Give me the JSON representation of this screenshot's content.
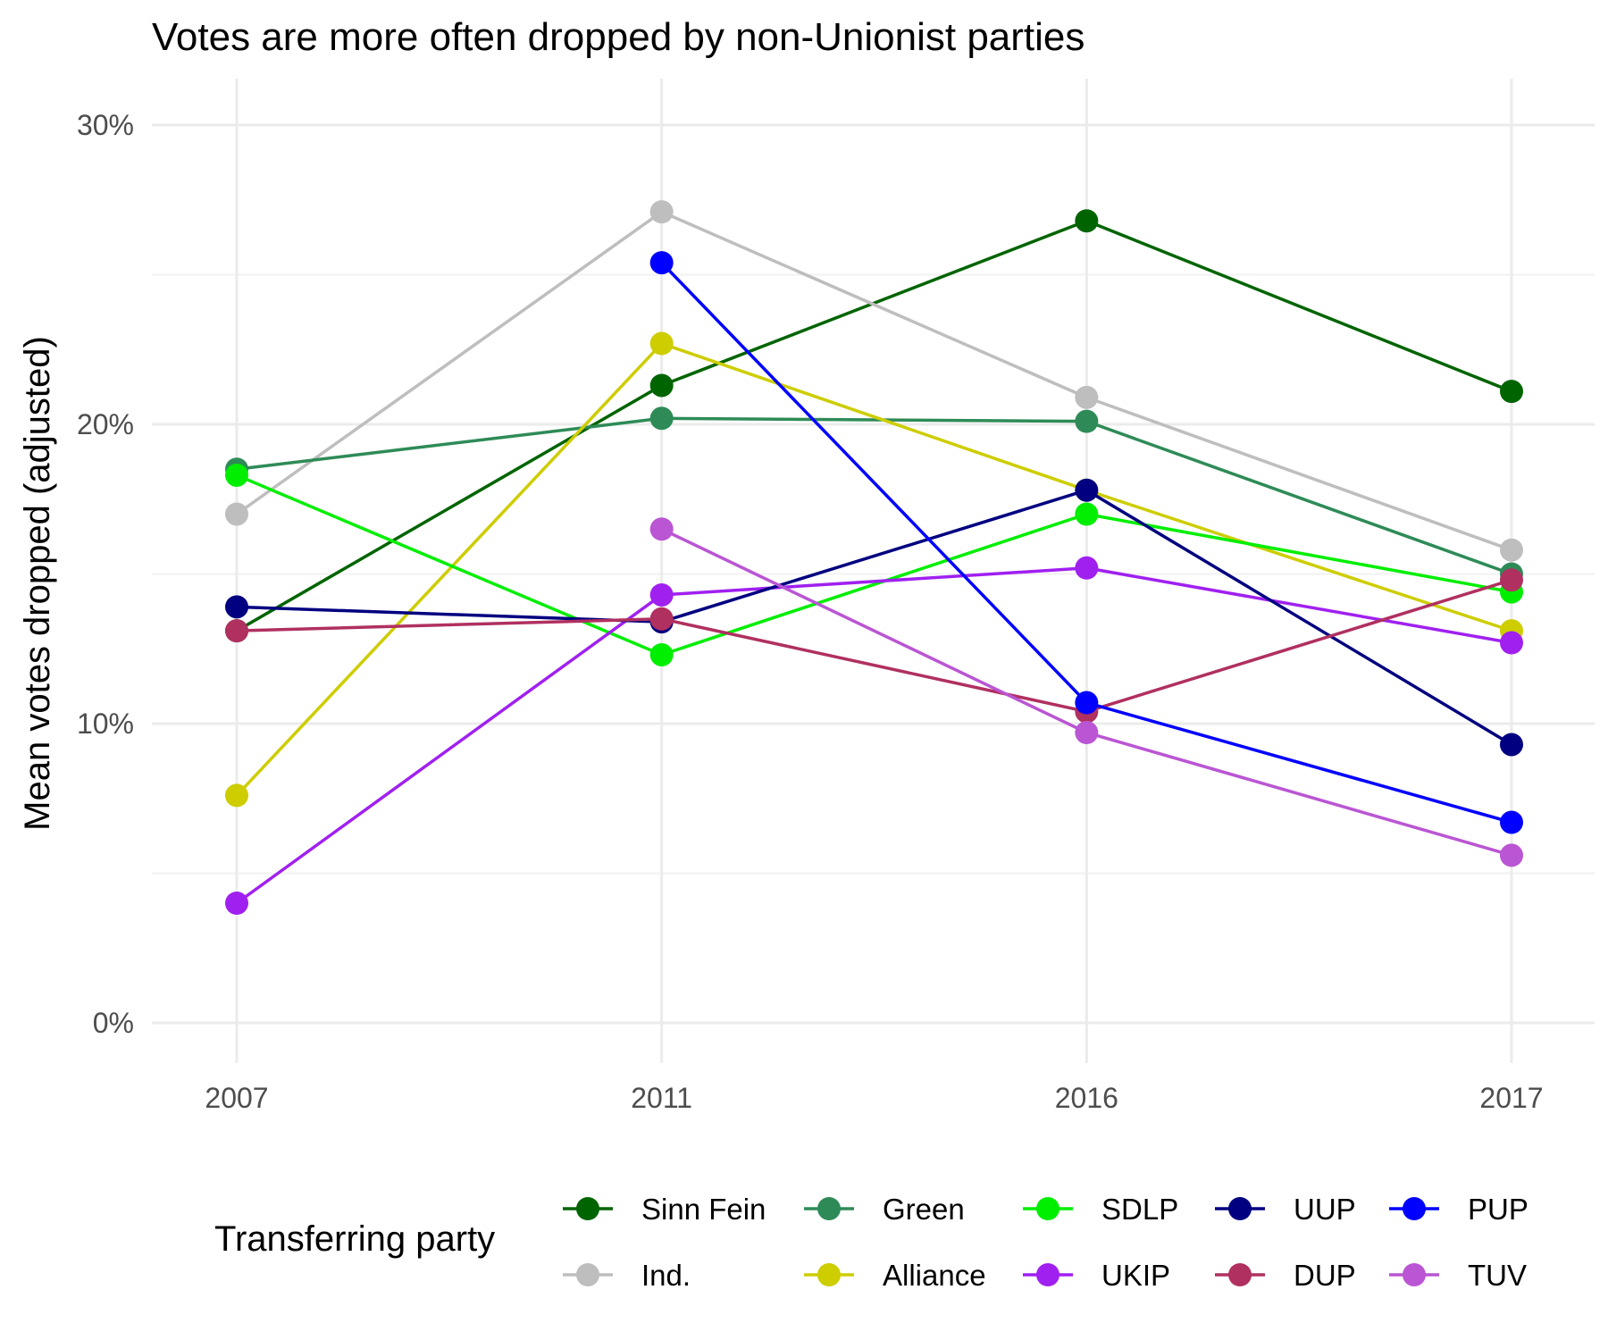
{
  "chart_data": {
    "type": "line",
    "title": "Votes are more often dropped by non-Unionist parties",
    "xlabel": "",
    "ylabel": "Mean votes dropped (adjusted)",
    "categories": [
      "2007",
      "2011",
      "2016",
      "2017"
    ],
    "ylim": [
      -1.5,
      31.5
    ],
    "yticks": [
      0,
      10,
      20,
      30
    ],
    "ytick_labels": [
      "0%",
      "10%",
      "20%",
      "30%"
    ],
    "y_unit": "%",
    "legend": {
      "title": "Transferring party",
      "position": "bottom"
    },
    "series": [
      {
        "name": "Sinn Fein",
        "color": "#006400",
        "values": [
          13.1,
          21.3,
          26.8,
          21.1
        ]
      },
      {
        "name": "Ind.",
        "color": "#bebebe",
        "values": [
          17.0,
          27.1,
          20.9,
          15.8
        ]
      },
      {
        "name": "Green",
        "color": "#2e8b57",
        "values": [
          18.5,
          20.2,
          20.1,
          15.0
        ]
      },
      {
        "name": "Alliance",
        "color": "#cdcd00",
        "values": [
          7.6,
          22.7,
          17.8,
          13.1
        ]
      },
      {
        "name": "SDLP",
        "color": "#00ee00",
        "values": [
          18.3,
          12.3,
          17.0,
          14.4
        ]
      },
      {
        "name": "UKIP",
        "color": "#a020f0",
        "values": [
          4.0,
          14.3,
          15.2,
          12.7
        ]
      },
      {
        "name": "UUP",
        "color": "#000080",
        "values": [
          13.9,
          13.4,
          17.8,
          9.3
        ]
      },
      {
        "name": "DUP",
        "color": "#b03060",
        "values": [
          13.1,
          13.5,
          10.4,
          14.8
        ]
      },
      {
        "name": "PUP",
        "color": "#0000ff",
        "values": [
          null,
          25.4,
          10.7,
          6.7
        ]
      },
      {
        "name": "TUV",
        "color": "#ba55d3",
        "values": [
          null,
          16.5,
          9.7,
          5.6
        ]
      }
    ],
    "legend_order": [
      "Sinn Fein",
      "Green",
      "SDLP",
      "UUP",
      "PUP",
      "Ind.",
      "Alliance",
      "UKIP",
      "DUP",
      "TUV"
    ]
  }
}
